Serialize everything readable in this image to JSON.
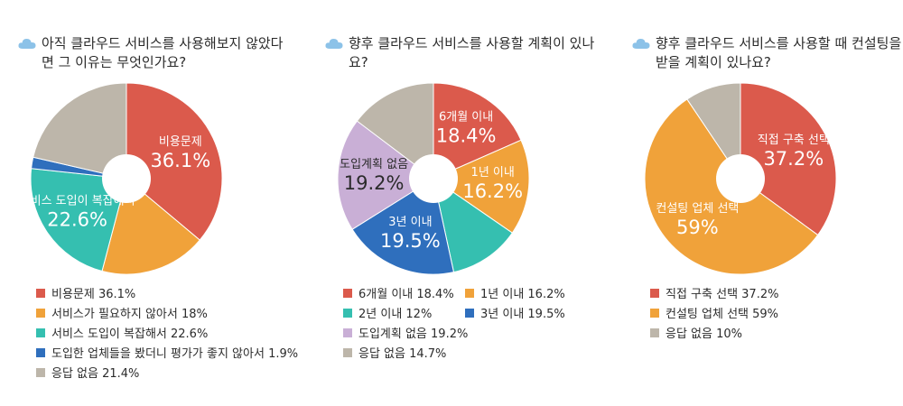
{
  "colors": {
    "red": "#db5a4c",
    "orange": "#f0a23a",
    "teal": "#35bfb0",
    "blue": "#2f6fbd",
    "gray": "#bdb6aa",
    "lavender": "#c9afd6",
    "cloud": "#8cc2e8"
  },
  "chart_data": [
    {
      "type": "pie",
      "title": "아직 클라우드 서비스를 사용해보지 않았다면 그 이유는 무엇인가요?",
      "slices": [
        {
          "name": "비용문제",
          "value": 36.1,
          "color": "#db5a4c",
          "legend": "비용문제 36.1%",
          "label_name": "비용문제",
          "label_value": "36.1%",
          "text_color": "#ffffff"
        },
        {
          "name": "서비스가 필요하지 않아서",
          "value": 18,
          "color": "#f0a23a",
          "legend": "서비스가 필요하지 않아서 18%",
          "label_name": "",
          "label_value": "",
          "text_color": "#ffffff"
        },
        {
          "name": "서비스 도입이 복잡해서",
          "value": 22.6,
          "color": "#35bfb0",
          "legend": "서비스 도입이 복잡해서 22.6%",
          "label_name": "서비스 도입이 복잡해서",
          "label_value": "22.6%",
          "text_color": "#ffffff"
        },
        {
          "name": "도입한 업체들을 봤더니 평가가 좋지 않아서",
          "value": 1.9,
          "color": "#2f6fbd",
          "legend": "도입한 업체들을 봤더니 평가가 좋지 않아서 1.9%",
          "label_name": "",
          "label_value": "",
          "text_color": "#ffffff"
        },
        {
          "name": "응답 없음",
          "value": 21.4,
          "color": "#bdb6aa",
          "legend": "응답 없음 21.4%",
          "label_name": "",
          "label_value": "",
          "text_color": "#ffffff"
        }
      ]
    },
    {
      "type": "pie",
      "title": "향후 클라우드 서비스를 사용할 계획이 있나요?",
      "slices": [
        {
          "name": "6개월 이내",
          "value": 18.4,
          "color": "#db5a4c",
          "legend": "6개월 이내 18.4%",
          "label_name": "6개월 이내",
          "label_value": "18.4%",
          "text_color": "#ffffff"
        },
        {
          "name": "1년 이내",
          "value": 16.2,
          "color": "#f0a23a",
          "legend": "1년 이내 16.2%",
          "label_name": "1년 이내",
          "label_value": "16.2%",
          "text_color": "#ffffff"
        },
        {
          "name": "2년 이내",
          "value": 12,
          "color": "#35bfb0",
          "legend": "2년 이내 12%",
          "label_name": "",
          "label_value": "",
          "text_color": "#ffffff"
        },
        {
          "name": "3년 이내",
          "value": 19.5,
          "color": "#2f6fbd",
          "legend": "3년 이내 19.5%",
          "label_name": "3년 이내",
          "label_value": "19.5%",
          "text_color": "#ffffff"
        },
        {
          "name": "도입계획 없음",
          "value": 19.2,
          "color": "#c9afd6",
          "legend": "도입계획 없음 19.2%",
          "label_name": "도입계획 없음",
          "label_value": "19.2%",
          "text_color": "#2b2b2b"
        },
        {
          "name": "응답 없음",
          "value": 14.7,
          "color": "#bdb6aa",
          "legend": "응답 없음 14.7%",
          "label_name": "",
          "label_value": "",
          "text_color": "#ffffff"
        }
      ]
    },
    {
      "type": "pie",
      "title": "향후 클라우드 서비스를 사용할 때 컨설팅을 받을 계획이 있나요?",
      "slices": [
        {
          "name": "직접 구축 선택",
          "value": 37.2,
          "color": "#db5a4c",
          "legend": "직접 구축 선택 37.2%",
          "label_name": "직접 구축 선택",
          "label_value": "37.2%",
          "text_color": "#ffffff"
        },
        {
          "name": "컨설팅 업체 선택",
          "value": 59,
          "color": "#f0a23a",
          "legend": "컨설팅 업체 선택 59%",
          "label_name": "컨설팅 업체 선택",
          "label_value": "59%",
          "text_color": "#ffffff"
        },
        {
          "name": "응답 없음",
          "value": 10,
          "color": "#bdb6aa",
          "legend": "응답 없음 10%",
          "label_name": "",
          "label_value": "",
          "text_color": "#ffffff"
        }
      ]
    }
  ]
}
